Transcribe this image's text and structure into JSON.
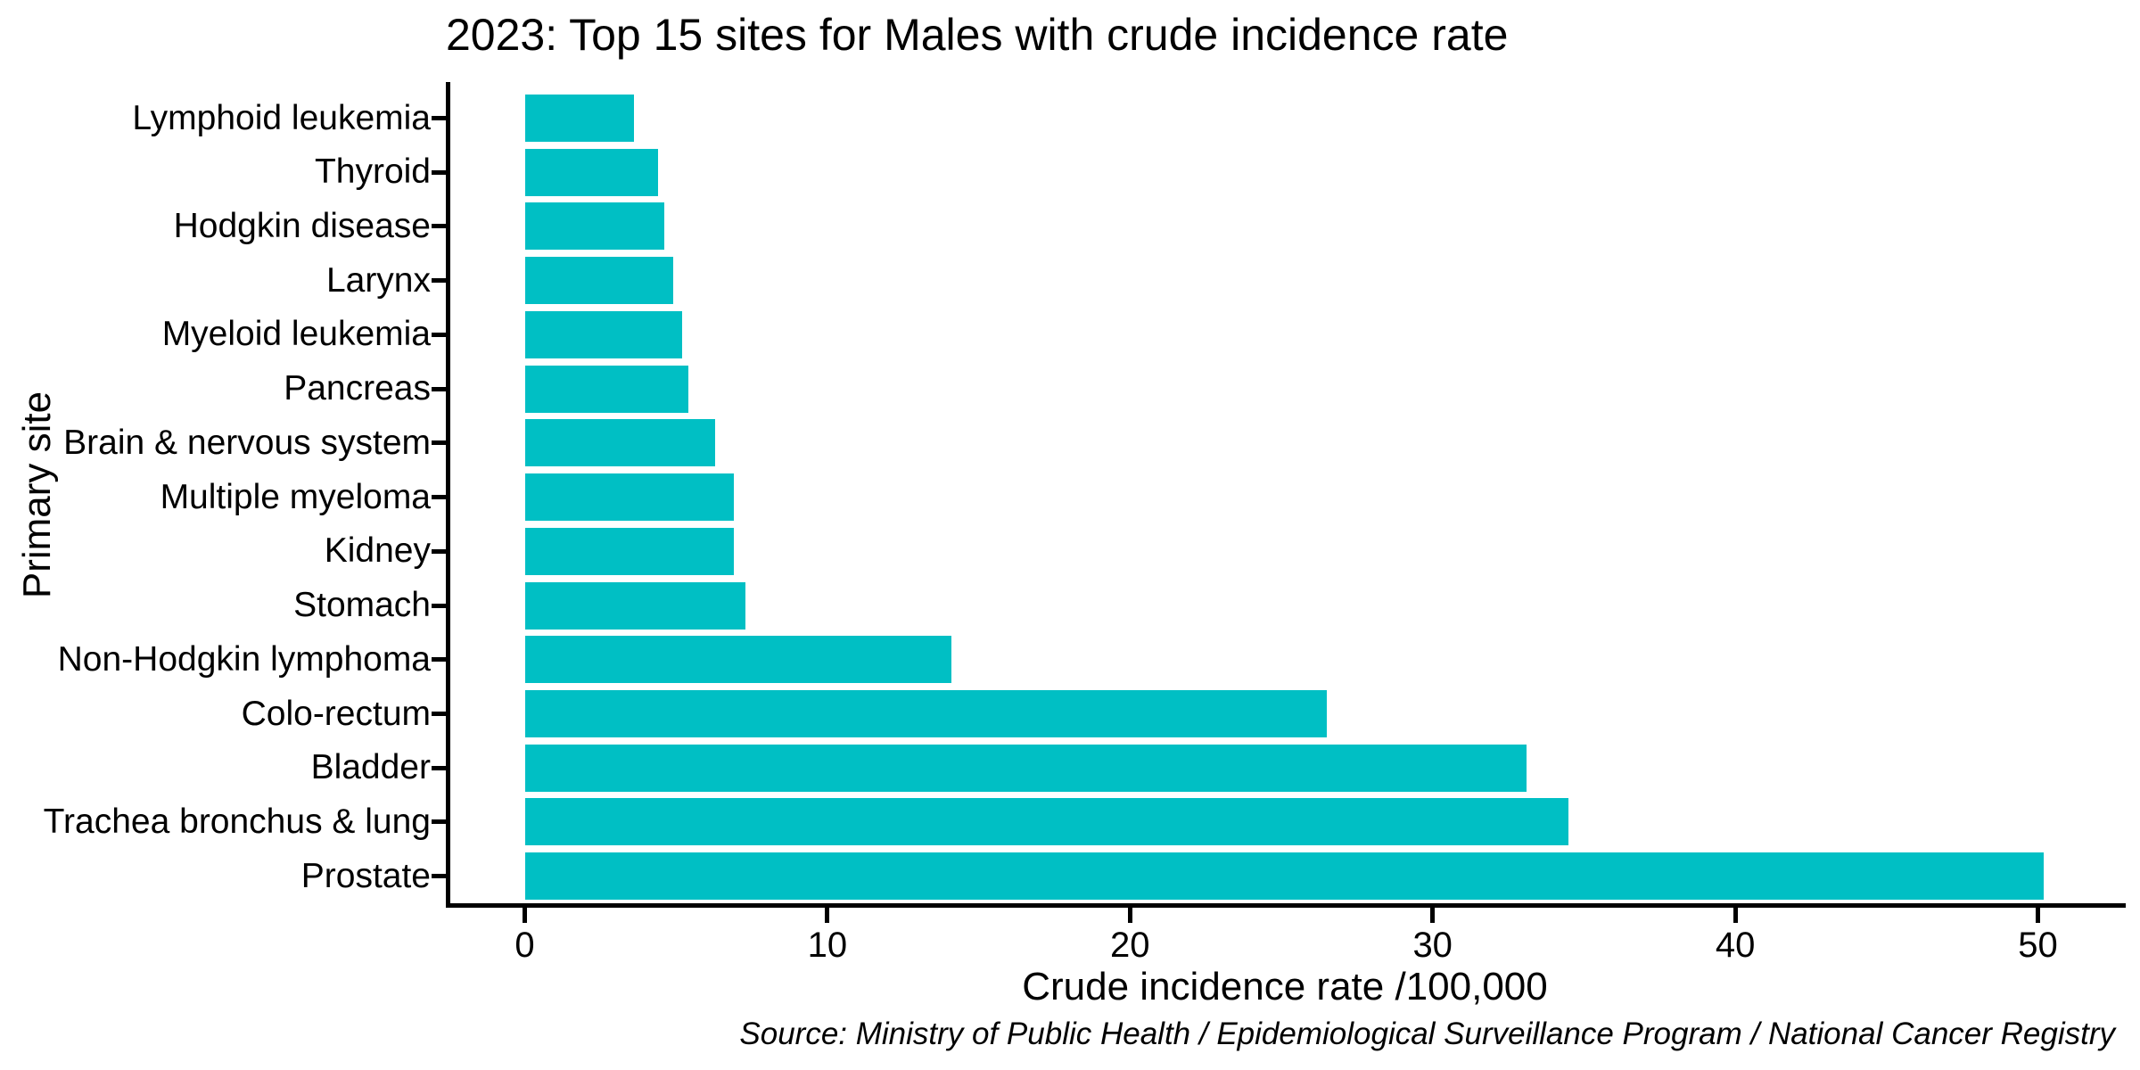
{
  "chart_data": {
    "type": "bar",
    "orientation": "horizontal",
    "title": "2023: Top 15 sites for Males with crude incidence rate",
    "xlabel": "Crude incidence rate /100,000",
    "ylabel": "Primary site",
    "source_note": "Source: Ministry of Public Health / Epidemiological Surveillance Program / National Cancer Registry",
    "categories": [
      "Lymphoid leukemia",
      "Thyroid",
      "Hodgkin disease",
      "Larynx",
      "Myeloid leukemia",
      "Pancreas",
      "Brain & nervous system",
      "Multiple myeloma",
      "Kidney",
      "Stomach",
      "Non-Hodgkin lymphoma",
      "Colo-rectum",
      "Bladder",
      "Trachea bronchus & lung",
      "Prostate"
    ],
    "values": [
      3.6,
      4.4,
      4.6,
      4.9,
      5.2,
      5.4,
      6.3,
      6.9,
      6.9,
      7.3,
      14.1,
      26.5,
      33.1,
      34.5,
      50.2
    ],
    "xlim": [
      0,
      50
    ],
    "xticks": [
      0,
      10,
      20,
      30,
      40,
      50
    ],
    "grid": false,
    "legend": null,
    "bar_color": "#00BFC4",
    "axis_color": "#000000",
    "background_color": "#FFFFFF"
  }
}
